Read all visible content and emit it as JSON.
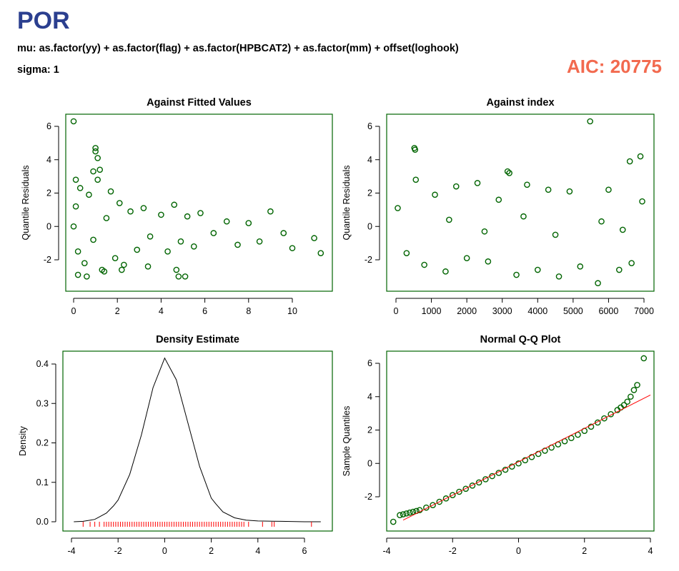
{
  "header": {
    "title": "POR",
    "mu_line": "mu: as.factor(yy) + as.factor(flag) + as.factor(HPBCAT2) + as.factor(mm) + offset(loghook)",
    "sigma_line": "sigma: 1",
    "aic_label": "AIC: 20775"
  },
  "colors": {
    "points": "#006400",
    "frame": "#006400",
    "rug": "#ff0000",
    "qq_line": "#ff0000",
    "density_line": "#000000",
    "title": "#2b3f8f",
    "aic": "#f26a4f"
  },
  "chart_data": [
    {
      "type": "scatter",
      "title": "Against Fitted Values",
      "xlabel": "",
      "ylabel": "Quantile Residuals",
      "xlim": [
        0,
        11.3
      ],
      "ylim": [
        -3.5,
        6.3
      ],
      "x_ticks": [
        "0",
        "2",
        "4",
        "6",
        "8",
        "10"
      ],
      "y_ticks": [
        "-2",
        "0",
        "2",
        "4",
        "6"
      ],
      "x": [
        0.0,
        0.1,
        0.2,
        0.3,
        0.5,
        0.7,
        0.9,
        1.1,
        1.3,
        1.5,
        1.7,
        1.9,
        2.1,
        2.3,
        2.6,
        2.9,
        3.2,
        3.5,
        4.0,
        4.3,
        4.6,
        4.9,
        5.2,
        5.5,
        5.8,
        6.4,
        7.0,
        7.5,
        8.0,
        8.5,
        9.0,
        9.6,
        10.0,
        11.0,
        11.3,
        0.0,
        1.0,
        1.0,
        1.1,
        0.2,
        0.6,
        1.4,
        2.2,
        3.4,
        4.8,
        5.1,
        4.7,
        0.9,
        1.2,
        0.1
      ],
      "y": [
        0.0,
        1.2,
        -1.5,
        2.3,
        -2.2,
        1.9,
        -0.8,
        2.8,
        -2.6,
        0.5,
        2.1,
        -1.9,
        1.4,
        -2.3,
        0.9,
        -1.4,
        1.1,
        -0.6,
        0.7,
        -1.5,
        1.3,
        -0.9,
        0.6,
        -1.2,
        0.8,
        -0.4,
        0.3,
        -1.1,
        0.2,
        -0.9,
        0.9,
        -0.4,
        -1.3,
        -0.7,
        -1.6,
        6.3,
        4.7,
        4.5,
        4.1,
        -2.9,
        -3.0,
        -2.7,
        -2.6,
        -2.4,
        -3.0,
        -3.0,
        -2.6,
        3.3,
        3.4,
        2.8
      ],
      "grid": false
    },
    {
      "type": "scatter",
      "title": "Against  index",
      "xlabel": "",
      "ylabel": "Quantile Residuals",
      "xlim": [
        0,
        7000
      ],
      "ylim": [
        -3.5,
        6.3
      ],
      "x_ticks": [
        "0",
        "1000",
        "2000",
        "3000",
        "4000",
        "5000",
        "6000",
        "7000"
      ],
      "y_ticks": [
        "-2",
        "0",
        "2",
        "4",
        "6"
      ],
      "x": [
        50,
        300,
        520,
        540,
        560,
        800,
        1100,
        1400,
        1700,
        2000,
        2300,
        2600,
        2900,
        3150,
        3200,
        3400,
        3700,
        4000,
        4300,
        4600,
        4900,
        5200,
        5480,
        5700,
        6000,
        6300,
        6600,
        6650,
        6900,
        6950,
        1500,
        2500,
        3600,
        4500,
        5800,
        6400
      ],
      "y": [
        1.1,
        -1.6,
        4.7,
        4.6,
        2.8,
        -2.3,
        1.9,
        -2.7,
        2.4,
        -1.9,
        2.6,
        -2.1,
        1.6,
        3.3,
        3.2,
        -2.9,
        2.5,
        -2.6,
        2.2,
        -3.0,
        2.1,
        -2.4,
        6.3,
        -3.4,
        2.2,
        -2.6,
        3.9,
        -2.2,
        4.2,
        1.5,
        0.4,
        -0.3,
        0.6,
        -0.5,
        0.3,
        -0.2
      ],
      "grid": false
    },
    {
      "type": "line",
      "title": "Density Estimate",
      "xlabel": "",
      "ylabel": "Density",
      "xlim": [
        -4,
        6.8
      ],
      "ylim": [
        0,
        0.42
      ],
      "x_ticks": [
        "-4",
        "-2",
        "0",
        "2",
        "4",
        "6"
      ],
      "y_ticks": [
        "0.0",
        "0.1",
        "0.2",
        "0.3",
        "0.4"
      ],
      "x": [
        -3.9,
        -3.5,
        -3.0,
        -2.5,
        -2.2,
        -2.0,
        -1.5,
        -1.0,
        -0.5,
        0.0,
        0.5,
        1.0,
        1.5,
        2.0,
        2.2,
        2.5,
        3.0,
        3.5,
        4.0,
        5.0,
        6.0,
        6.7
      ],
      "y": [
        0.0,
        0.001,
        0.006,
        0.022,
        0.04,
        0.055,
        0.12,
        0.22,
        0.34,
        0.415,
        0.36,
        0.25,
        0.14,
        0.06,
        0.045,
        0.025,
        0.01,
        0.004,
        0.002,
        0.001,
        0.0,
        0.0
      ],
      "rug": [
        -3.5,
        -3.2,
        -3.0,
        -2.8,
        -2.6,
        -2.5,
        -2.4,
        -2.3,
        -2.2,
        -2.1,
        -2.0,
        -1.9,
        -1.8,
        -1.7,
        -1.6,
        -1.5,
        -1.4,
        -1.3,
        -1.2,
        -1.1,
        -1.0,
        -0.9,
        -0.8,
        -0.7,
        -0.6,
        -0.5,
        -0.4,
        -0.3,
        -0.2,
        -0.1,
        0.0,
        0.1,
        0.2,
        0.3,
        0.4,
        0.5,
        0.6,
        0.7,
        0.8,
        0.9,
        1.0,
        1.1,
        1.2,
        1.3,
        1.4,
        1.5,
        1.6,
        1.7,
        1.8,
        1.9,
        2.0,
        2.1,
        2.2,
        2.3,
        2.4,
        2.5,
        2.6,
        2.7,
        2.8,
        2.9,
        3.0,
        3.1,
        3.2,
        3.3,
        3.4,
        3.6,
        4.2,
        4.6,
        4.7,
        6.3
      ],
      "grid": false
    },
    {
      "type": "scatter",
      "title": "Normal Q-Q Plot",
      "xlabel": "",
      "ylabel": "Sample Quantiles",
      "xlim": [
        -3.85,
        4.0
      ],
      "ylim": [
        -3.6,
        6.6
      ],
      "x_ticks": [
        "-4",
        "-2",
        "0",
        "2",
        "4"
      ],
      "y_ticks": [
        "-2",
        "0",
        "2",
        "4",
        "6"
      ],
      "x": [
        -3.8,
        -3.6,
        -3.5,
        -3.4,
        -3.3,
        -3.2,
        -3.1,
        -3.0,
        -2.8,
        -2.6,
        -2.4,
        -2.2,
        -2.0,
        -1.8,
        -1.6,
        -1.4,
        -1.2,
        -1.0,
        -0.8,
        -0.6,
        -0.4,
        -0.2,
        0.0,
        0.2,
        0.4,
        0.6,
        0.8,
        1.0,
        1.2,
        1.4,
        1.6,
        1.8,
        2.0,
        2.2,
        2.4,
        2.6,
        2.8,
        3.0,
        3.1,
        3.2,
        3.3,
        3.4,
        3.5,
        3.6,
        3.8
      ],
      "y": [
        -3.5,
        -3.1,
        -3.05,
        -3.0,
        -2.95,
        -2.9,
        -2.85,
        -2.8,
        -2.65,
        -2.5,
        -2.3,
        -2.1,
        -1.9,
        -1.7,
        -1.52,
        -1.33,
        -1.14,
        -0.95,
        -0.76,
        -0.57,
        -0.38,
        -0.19,
        0.0,
        0.19,
        0.38,
        0.57,
        0.76,
        0.95,
        1.14,
        1.33,
        1.52,
        1.72,
        1.95,
        2.2,
        2.45,
        2.7,
        2.95,
        3.2,
        3.35,
        3.5,
        3.7,
        4.0,
        4.4,
        4.7,
        6.3
      ],
      "reference_line": {
        "x": [
          -3.5,
          4.0
        ],
        "y": [
          -3.4,
          4.1
        ]
      },
      "grid": false
    }
  ]
}
